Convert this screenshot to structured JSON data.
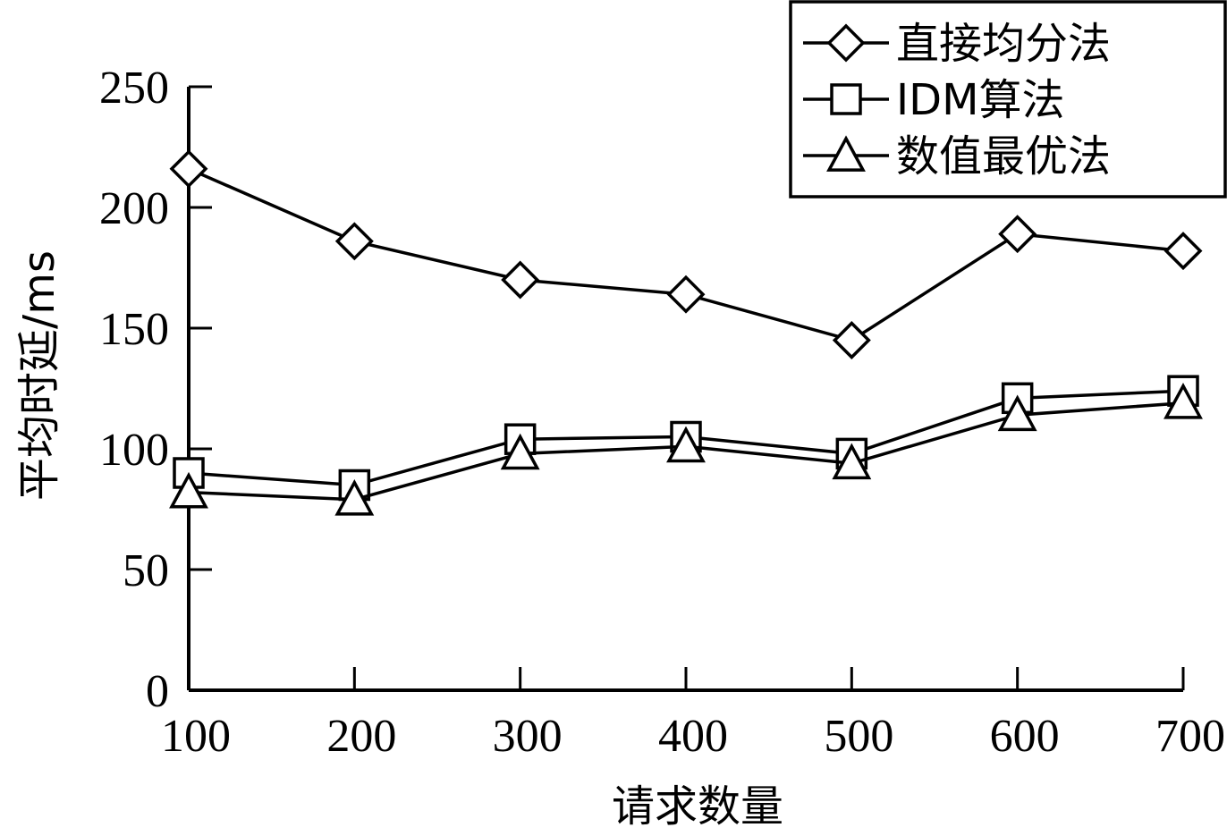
{
  "chart_data": {
    "type": "line",
    "xlabel": "请求数量",
    "ylabel": "平均时延/ms",
    "x": [
      100,
      200,
      300,
      400,
      500,
      600,
      700
    ],
    "x_ticks": [
      "100",
      "200",
      "300",
      "400",
      "500",
      "600",
      "700"
    ],
    "y_ticks": [
      "0",
      "50",
      "100",
      "150",
      "200",
      "250"
    ],
    "xlim": [
      100,
      700
    ],
    "ylim": [
      0,
      250
    ],
    "grid": false,
    "legend_position": "top-right",
    "series": [
      {
        "name": "直接均分法",
        "marker": "diamond",
        "values": [
          216,
          186,
          170,
          164,
          145,
          189,
          182
        ]
      },
      {
        "name": "IDM算法",
        "marker": "square",
        "values": [
          90,
          85,
          104,
          105,
          98,
          121,
          124
        ]
      },
      {
        "name": "数值最优法",
        "marker": "triangle",
        "values": [
          82,
          79,
          98,
          101,
          94,
          114,
          119
        ]
      }
    ]
  }
}
